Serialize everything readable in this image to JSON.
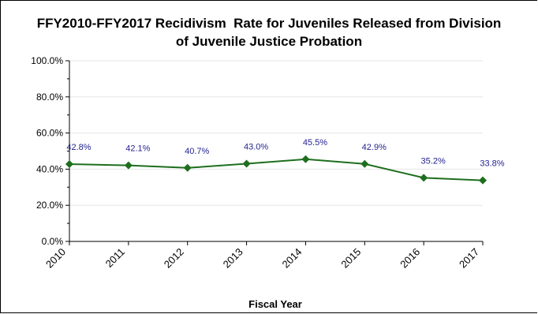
{
  "chart_data": {
    "type": "line",
    "title_line1": "FFY2010-FFY2017 Recidivism  Rate for Juveniles Released from Division",
    "title_line2": "of Juvenile Justice Probation",
    "xlabel": "Fiscal Year",
    "ylabel": "",
    "categories": [
      "2010",
      "2011",
      "2012",
      "2013",
      "2014",
      "2015",
      "2016",
      "2017"
    ],
    "series": [
      {
        "values": [
          42.8,
          42.1,
          40.7,
          43.0,
          45.5,
          42.9,
          35.2,
          33.8
        ],
        "data_labels": [
          "42.8%",
          "42.1%",
          "40.7%",
          "43.0%",
          "45.5%",
          "42.9%",
          "35.2%",
          "33.8%"
        ],
        "color": "#1e6e1e"
      }
    ],
    "ylim": [
      0,
      100
    ],
    "y_ticks": [
      "0.0%",
      "20.0%",
      "40.0%",
      "60.0%",
      "80.0%",
      "100.0%"
    ],
    "grid": true,
    "legend": "none",
    "colors": {
      "line": "#1e6e1e",
      "marker": "#1e6e1e",
      "data_label": "#1f1f8f",
      "grid": "#e6e6e6"
    }
  }
}
